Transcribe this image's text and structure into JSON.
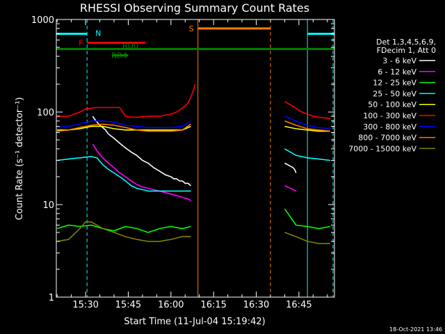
{
  "colors": {
    "background": "#000000",
    "axis": "#ffffff",
    "night": "#00ffff",
    "saa": "#ff7f00",
    "flare": "#ff0000",
    "decimation": "#008000"
  },
  "chart_data": {
    "type": "line",
    "title": "RHESSI Observing Summary Count Rates",
    "xlabel": "Start Time (11-Jul-04 15:19:42)",
    "ylabel": "Count Rate (s⁻¹ detector⁻¹)",
    "xlim": [
      "15:19:42",
      "16:57:30"
    ],
    "ylim": [
      1,
      1000
    ],
    "y_scale": "log",
    "x_ticks": [
      "15:30",
      "15:45",
      "16:00",
      "16:15",
      "16:30",
      "16:45"
    ],
    "x_tick_values": [
      30,
      45,
      60,
      75,
      90,
      105
    ],
    "y_ticks": [
      "1",
      "10",
      "100",
      "1000"
    ],
    "y_tick_values": [
      1,
      10,
      100,
      1000
    ],
    "x_range_minutes_after_15h": [
      19.7,
      117.5
    ],
    "legend_header": [
      "Det 1,3,4,5,6,9,",
      "FDecim 1, Att 0"
    ],
    "legend_position": "right",
    "series": [
      {
        "name": "3 - 6 keV",
        "color": "#ffffff",
        "segments": [
          {
            "x": [
              32.5,
              33,
              34,
              35,
              36,
              37,
              38,
              40,
              42,
              44,
              46,
              48,
              50,
              52,
              54,
              56,
              58,
              60,
              61,
              62,
              63,
              64,
              65,
              66,
              66.5,
              67
            ],
            "y": [
              90,
              85,
              78,
              72,
              68,
              64,
              58,
              52,
              46,
              41,
              37,
              34,
              30,
              28,
              25,
              23,
              21,
              20,
              19,
              19,
              18,
              18,
              17,
              17,
              16.5,
              16
            ]
          },
          {
            "x": [
              100,
              101,
              102,
              103,
              103.5,
              104
            ],
            "y": [
              28,
              27,
              26,
              25,
              24,
              22
            ]
          }
        ]
      },
      {
        "name": "6 - 12 keV",
        "color": "#ff00ff",
        "segments": [
          {
            "x": [
              32.5,
              34,
              36,
              38,
              40,
              42,
              44,
              46,
              48,
              50,
              52,
              54,
              56,
              58,
              60,
              62,
              64,
              66,
              67
            ],
            "y": [
              45,
              38,
              32,
              28,
              25,
              22,
              20,
              18,
              16.5,
              15.5,
              15,
              14.5,
              14,
              13.5,
              13,
              12.5,
              12,
              11.5,
              11
            ]
          },
          {
            "x": [
              100,
              101,
              102,
              103,
              104
            ],
            "y": [
              16,
              15.5,
              15,
              14.5,
              14
            ]
          }
        ]
      },
      {
        "name": "12 - 25 keV",
        "color": "#00ff00",
        "segments": [
          {
            "x": [
              20,
              24,
              28,
              32,
              36,
              40,
              44,
              48,
              52,
              56,
              60,
              64,
              67
            ],
            "y": [
              5.5,
              6,
              5.8,
              6,
              5.5,
              5.2,
              5.8,
              5.5,
              5.0,
              5.5,
              5.8,
              5.5,
              5.8
            ]
          },
          {
            "x": [
              100,
              104,
              108,
              112,
              116
            ],
            "y": [
              9,
              6,
              5.8,
              5.5,
              5.8
            ]
          }
        ]
      },
      {
        "name": "25 - 50 keV",
        "color": "#00ffff",
        "segments": [
          {
            "x": [
              20,
              24,
              28,
              32,
              34,
              36,
              38,
              40,
              42,
              44,
              46,
              48,
              50,
              52,
              54,
              56,
              58,
              60,
              62,
              64,
              66,
              67
            ],
            "y": [
              30,
              31,
              32,
              33,
              32,
              27,
              24,
              22,
              20,
              18,
              16,
              15,
              14.5,
              14,
              14,
              14,
              14,
              14,
              14,
              14,
              14,
              14
            ]
          },
          {
            "x": [
              100,
              104,
              108,
              112,
              116
            ],
            "y": [
              40,
              34,
              32,
              31,
              30
            ]
          }
        ]
      },
      {
        "name": "50 - 100 keV",
        "color": "#ffff00",
        "segments": [
          {
            "x": [
              20,
              24,
              28,
              32,
              36,
              40,
              44,
              48,
              52,
              56,
              60,
              64,
              67
            ],
            "y": [
              64,
              64,
              66,
              70,
              70,
              66,
              64,
              64,
              64,
              64,
              64,
              64,
              70
            ]
          },
          {
            "x": [
              100,
              104,
              108,
              112,
              116
            ],
            "y": [
              70,
              66,
              64,
              62,
              62
            ]
          }
        ]
      },
      {
        "name": "100 - 300 keV",
        "color": "#ff0000",
        "segments": [
          {
            "x": [
              20,
              24,
              28,
              30,
              34,
              38,
              42,
              44,
              46,
              48,
              52,
              56,
              60,
              62,
              64,
              66,
              67,
              68,
              68.5
            ],
            "y": [
              90,
              90,
              100,
              108,
              112,
              112,
              112,
              90,
              88,
              88,
              90,
              90,
              95,
              100,
              110,
              125,
              145,
              175,
              200
            ]
          },
          {
            "x": [
              100,
              102,
              104,
              106,
              108,
              110,
              112,
              116
            ],
            "y": [
              130,
              120,
              110,
              100,
              95,
              90,
              88,
              85
            ]
          }
        ]
      },
      {
        "name": "300 - 800 keV",
        "color": "#0000ff",
        "segments": [
          {
            "x": [
              20,
              24,
              28,
              32,
              36,
              40,
              44,
              48,
              52,
              56,
              60,
              64,
              67
            ],
            "y": [
              68,
              70,
              75,
              80,
              80,
              78,
              72,
              70,
              68,
              68,
              68,
              70,
              80
            ]
          },
          {
            "x": [
              100,
              104,
              108,
              112,
              116
            ],
            "y": [
              90,
              80,
              72,
              68,
              66
            ]
          }
        ]
      },
      {
        "name": "800 - 7000 keV",
        "color": "#ff7f00",
        "segments": [
          {
            "x": [
              20,
              24,
              28,
              32,
              36,
              40,
              44,
              48,
              52,
              56,
              60,
              64,
              67
            ],
            "y": [
              62,
              64,
              68,
              72,
              74,
              72,
              68,
              64,
              62,
              62,
              62,
              64,
              74
            ]
          },
          {
            "x": [
              100,
              104,
              108,
              112,
              116
            ],
            "y": [
              80,
              72,
              66,
              64,
              62
            ]
          }
        ]
      },
      {
        "name": "7000 - 15000 keV",
        "color": "#808000",
        "segments": [
          {
            "x": [
              20,
              24,
              28,
              30,
              32,
              36,
              40,
              44,
              48,
              52,
              56,
              60,
              64,
              67
            ],
            "y": [
              4,
              4.2,
              5.5,
              6.5,
              6.5,
              5.5,
              5.0,
              4.5,
              4.2,
              4.0,
              4.0,
              4.2,
              4.5,
              4.5
            ]
          },
          {
            "x": [
              100,
              104,
              108,
              112,
              116
            ],
            "y": [
              5.0,
              4.5,
              4.0,
              3.8,
              3.8
            ]
          }
        ]
      }
    ],
    "annotations": [
      {
        "label": "N",
        "color": "#00ffff",
        "x_start": 19.7,
        "x_end": 30.5,
        "level": 700
      },
      {
        "label": "",
        "color": "#00ffff",
        "x_start": 108,
        "x_end": 117.5,
        "level": 700
      },
      {
        "label": "F",
        "color": "#ff0000",
        "x_start": 30.5,
        "x_end": 51.0,
        "level": 560
      },
      {
        "label": "RD0",
        "color": "#008000",
        "x_start": 19.7,
        "x_end": 117.5,
        "level": 480
      },
      {
        "label": "RD4",
        "color": "#008000",
        "x_start": 39.5,
        "x_end": 45.0,
        "level": 410
      },
      {
        "label": "S",
        "color": "#ff7f00",
        "x_start": 69.5,
        "x_end": 95.0,
        "level": 800
      }
    ],
    "marker_lines": [
      {
        "color": "#00ffff",
        "x": 19.7,
        "style": "solid"
      },
      {
        "color": "#00ffff",
        "x": 30.5,
        "style": "dashed"
      },
      {
        "color": "#00ffff",
        "x": 108.0,
        "style": "solid"
      },
      {
        "color": "#00ffff",
        "x": 117.0,
        "style": "dashed"
      },
      {
        "color": "#ff7f00",
        "x": 69.5,
        "style": "solid"
      },
      {
        "color": "#ff7f00",
        "x": 95.0,
        "style": "dashed"
      }
    ]
  },
  "footer": {
    "timestamp": "18-Oct-2021 13:46"
  }
}
